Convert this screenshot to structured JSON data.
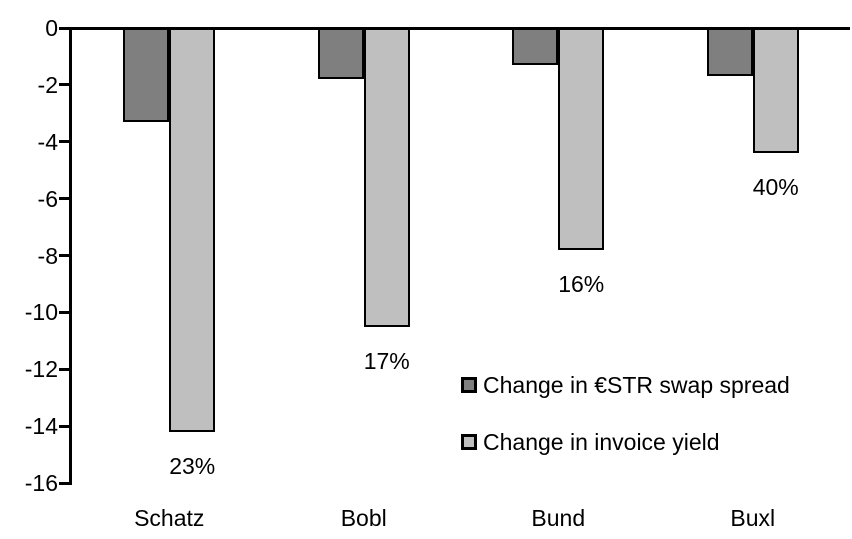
{
  "chart_data": {
    "type": "bar",
    "categories": [
      "Schatz",
      "Bobl",
      "Bund",
      "Buxl"
    ],
    "series": [
      {
        "name": "Change in €STR swap spread",
        "slug": "swap-spread",
        "color": "#7f7f7f",
        "values": [
          -3.3,
          -1.8,
          -1.3,
          -1.7
        ]
      },
      {
        "name": "Change in invoice yield",
        "slug": "invoice-yield",
        "color": "#bfbfbf",
        "values": [
          -14.2,
          -10.5,
          -7.8,
          -4.4
        ],
        "point_labels": [
          "23%",
          "17%",
          "16%",
          "40%"
        ]
      }
    ],
    "title": "",
    "xlabel": "",
    "ylabel": "",
    "ylim": [
      -16,
      0
    ],
    "yticks": [
      0,
      -2,
      -4,
      -6,
      -8,
      -10,
      -12,
      -14,
      -16
    ],
    "grid": false,
    "legend_position": "inside-right",
    "bar_border_color": "#000000",
    "axis_color": "#000000",
    "text_color": "#000000",
    "background_color": "#ffffff"
  }
}
